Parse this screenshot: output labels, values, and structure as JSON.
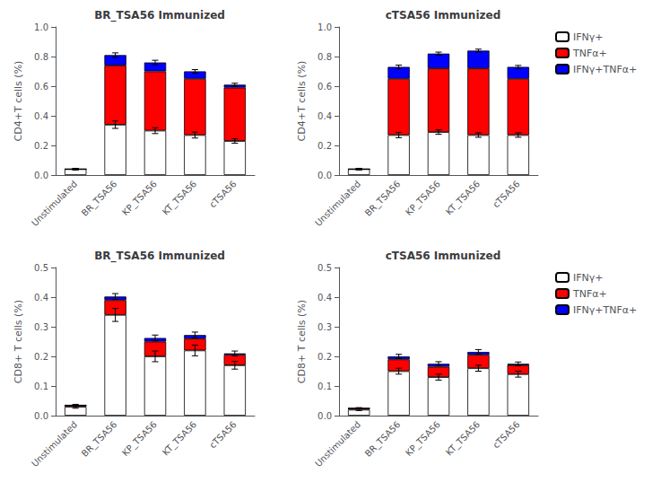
{
  "chart_data": [
    {
      "type": "bar",
      "stacked": true,
      "title": "BR_TSA56 Immunized",
      "categories": [
        "Unstimulated",
        "BR_TSA56",
        "KP_TSA56",
        "KT_TSA56",
        "cTSA56"
      ],
      "ylabel": "CD4+T cells (%)",
      "ylim": [
        0.0,
        1.0
      ],
      "yticks": [
        {
          "value": 0.0,
          "label": "0.0"
        },
        0.2,
        0.4,
        0.6,
        0.8,
        {
          "value": 1.0,
          "label": "1.0"
        }
      ],
      "grid": false,
      "series": [
        {
          "name": "IFNγ+",
          "color": "#ffffff",
          "values": [
            0.04,
            0.34,
            0.3,
            0.27,
            0.23
          ],
          "errors": [
            0.005,
            0.025,
            0.02,
            0.02,
            0.015
          ]
        },
        {
          "name": "TNFα+",
          "color": "#ff0000",
          "values": [
            0.0,
            0.4,
            0.4,
            0.38,
            0.36
          ]
        },
        {
          "name": "IFNγ+TNFα+",
          "color": "#0000ff",
          "values": [
            0.0,
            0.07,
            0.06,
            0.05,
            0.02
          ]
        }
      ],
      "total_errors": [
        0.005,
        0.015,
        0.015,
        0.012,
        0.01
      ]
    },
    {
      "type": "bar",
      "stacked": true,
      "title": "cTSA56 Immunized",
      "categories": [
        "Unstimulated",
        "BR_TSA56",
        "KP_TSA56",
        "KT_TSA56",
        "cTSA56"
      ],
      "ylabel": "CD4+T cells (%)",
      "ylim": [
        0.0,
        1.0
      ],
      "yticks": [
        {
          "value": 0.0,
          "label": "0.0"
        },
        0.2,
        0.4,
        0.6,
        0.8,
        {
          "value": 1.0,
          "label": "1.0"
        }
      ],
      "grid": false,
      "legend": "upper right",
      "series": [
        {
          "name": "IFNγ+",
          "color": "#ffffff",
          "values": [
            0.04,
            0.27,
            0.29,
            0.27,
            0.27
          ],
          "errors": [
            0.005,
            0.018,
            0.015,
            0.015,
            0.015
          ]
        },
        {
          "name": "TNFα+",
          "color": "#ff0000",
          "values": [
            0.0,
            0.38,
            0.43,
            0.45,
            0.38
          ]
        },
        {
          "name": "IFNγ+TNFα+",
          "color": "#0000ff",
          "values": [
            0.0,
            0.08,
            0.1,
            0.12,
            0.08
          ]
        }
      ],
      "total_errors": [
        0.005,
        0.012,
        0.01,
        0.01,
        0.01
      ]
    },
    {
      "type": "bar",
      "stacked": true,
      "title": "BR_TSA56 Immunized",
      "categories": [
        "Unstimulated",
        "BR_TSA56",
        "KP_TSA56",
        "KT_TSA56",
        "cTSA56"
      ],
      "ylabel": "CD8+ T cells (%)",
      "ylim": [
        0.0,
        0.5
      ],
      "yticks": [
        {
          "value": 0.0,
          "label": "0.0"
        },
        0.1,
        0.2,
        0.3,
        0.4,
        0.5
      ],
      "grid": false,
      "series": [
        {
          "name": "IFNγ+",
          "color": "#ffffff",
          "values": [
            0.03,
            0.34,
            0.2,
            0.22,
            0.17
          ],
          "errors": [
            0.005,
            0.022,
            0.018,
            0.018,
            0.013
          ]
        },
        {
          "name": "TNFα+",
          "color": "#ff0000",
          "values": [
            0.005,
            0.05,
            0.05,
            0.04,
            0.035
          ]
        },
        {
          "name": "IFNγ+TNFα+",
          "color": "#0000ff",
          "values": [
            0.0,
            0.012,
            0.012,
            0.012,
            0.005
          ]
        }
      ],
      "total_errors": [
        0.003,
        0.01,
        0.01,
        0.01,
        0.008
      ]
    },
    {
      "type": "bar",
      "stacked": true,
      "title": "cTSA56 Immunized",
      "categories": [
        "Unstimulated",
        "BR_TSA56",
        "KP_TSA56",
        "KT_TSA56",
        "cTSA56"
      ],
      "ylabel": "CD8+ T cells (%)",
      "ylim": [
        0.0,
        0.5
      ],
      "yticks": [
        {
          "value": 0.0,
          "label": "0.0"
        },
        0.1,
        0.2,
        0.3,
        0.4,
        0.5
      ],
      "grid": false,
      "legend": "upper right",
      "series": [
        {
          "name": "IFNγ+",
          "color": "#ffffff",
          "values": [
            0.02,
            0.15,
            0.13,
            0.16,
            0.14
          ],
          "errors": [
            0.003,
            0.01,
            0.01,
            0.01,
            0.01
          ]
        },
        {
          "name": "TNFα+",
          "color": "#ff0000",
          "values": [
            0.005,
            0.04,
            0.035,
            0.045,
            0.03
          ]
        },
        {
          "name": "IFNγ+TNFα+",
          "color": "#0000ff",
          "values": [
            0.0,
            0.01,
            0.01,
            0.01,
            0.005
          ]
        }
      ],
      "total_errors": [
        0.002,
        0.007,
        0.007,
        0.008,
        0.006
      ]
    }
  ]
}
